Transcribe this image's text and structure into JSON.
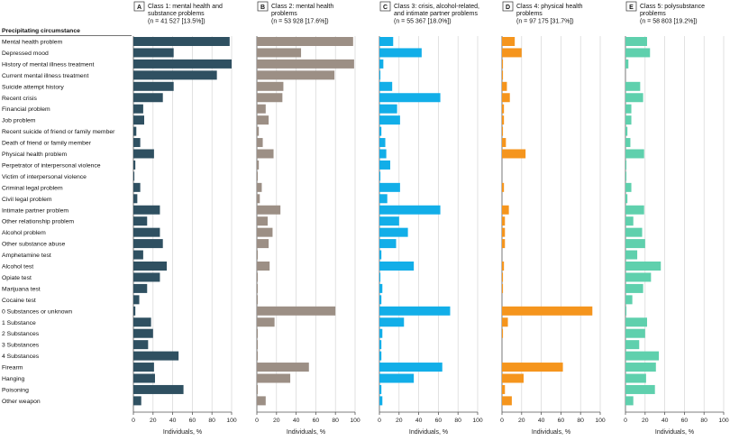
{
  "row_header": "Precipitating circumstance",
  "row_labels": [
    "Mental health problem",
    "Depressed mood",
    "History of mental illness treatment",
    "Current mental illness treatment",
    "Suicide attempt history",
    "Recent crisis",
    "Financial problem",
    "Job problem",
    "Recent suicide of friend or family member",
    "Death of friend or family member",
    "Physical health problem",
    "Perpetrator of interpersonal violence",
    "Victim of interpersonal violence",
    "Criminal legal problem",
    "Civil legal problem",
    "Intimate partner problem",
    "Other relationship problem",
    "Alcohol problem",
    "Other substance abuse",
    "Amphetamine test",
    "Alcohol test",
    "Opiate test",
    "Marijuana test",
    "Cocaine test",
    "0 Substances or unknown",
    "1 Substance",
    "2 Substances",
    "3 Substances",
    "4 Substances",
    "Firearm",
    "Hanging",
    "Poisoning",
    "Other weapon"
  ],
  "chart_data": {
    "type": "bar",
    "orientation": "horizontal",
    "xlabel": "Individuals, %",
    "xlim": [
      0,
      100
    ],
    "xticks": [
      "0",
      "20",
      "40",
      "60",
      "80",
      "100"
    ],
    "categories_ref": "row_labels",
    "series": [
      {
        "badge": "A",
        "title_line1": "Class 1: mental health and",
        "title_line2": "substance problems",
        "title_line3": "(n = 41 527 [13.5%])",
        "color": "#2f5061",
        "values": [
          98,
          41,
          100,
          85,
          41,
          30,
          10,
          11,
          3,
          7,
          21,
          2,
          1,
          7,
          4,
          27,
          14,
          27,
          30,
          10,
          34,
          27,
          14,
          6,
          2,
          18,
          20,
          15,
          46,
          21,
          22,
          51,
          8
        ]
      },
      {
        "badge": "B",
        "title_line1": "Class 2: mental health",
        "title_line2": "problems",
        "title_line3": "(n = 53 928 [17.6%])",
        "color": "#9c8f85",
        "values": [
          98,
          45,
          99,
          79,
          27,
          26,
          9,
          12,
          2,
          6,
          17,
          2,
          1,
          5,
          3,
          24,
          11,
          16,
          12,
          1,
          13,
          1,
          1,
          1,
          80,
          18,
          1,
          1,
          1,
          53,
          34,
          1,
          9
        ]
      },
      {
        "badge": "C",
        "title_line1": "Class 3: crisis, alcohol-related,",
        "title_line2": "and intimate partner problems",
        "title_line3": "(n = 55 367 [18.0%])",
        "color": "#12aee8",
        "values": [
          14,
          43,
          4,
          1,
          13,
          62,
          18,
          21,
          2,
          6,
          7,
          11,
          1,
          21,
          8,
          62,
          20,
          29,
          17,
          2,
          35,
          1,
          3,
          2,
          72,
          25,
          3,
          2,
          2,
          64,
          35,
          2,
          3
        ]
      },
      {
        "badge": "D",
        "title_line1": "Class 4: physical health",
        "title_line2": "problems",
        "title_line3": "(n = 97 175 [31.7%])",
        "color": "#f5951d",
        "values": [
          13,
          20,
          1,
          1,
          5,
          8,
          2,
          2,
          1,
          4,
          24,
          0,
          0,
          2,
          0,
          7,
          3,
          3,
          3,
          0,
          2,
          1,
          1,
          0,
          92,
          6,
          1,
          0,
          0,
          62,
          22,
          3,
          10
        ]
      },
      {
        "badge": "E",
        "title_line1": "Class 5: polysubstance",
        "title_line2": "problems",
        "title_line3": "(n = 58 803 [19.2%])",
        "color": "#5fd0ad",
        "values": [
          22,
          25,
          3,
          0,
          15,
          18,
          6,
          6,
          2,
          5,
          19,
          1,
          1,
          6,
          2,
          19,
          8,
          17,
          20,
          12,
          36,
          26,
          18,
          7,
          1,
          22,
          20,
          14,
          34,
          31,
          21,
          30,
          8
        ]
      }
    ]
  }
}
